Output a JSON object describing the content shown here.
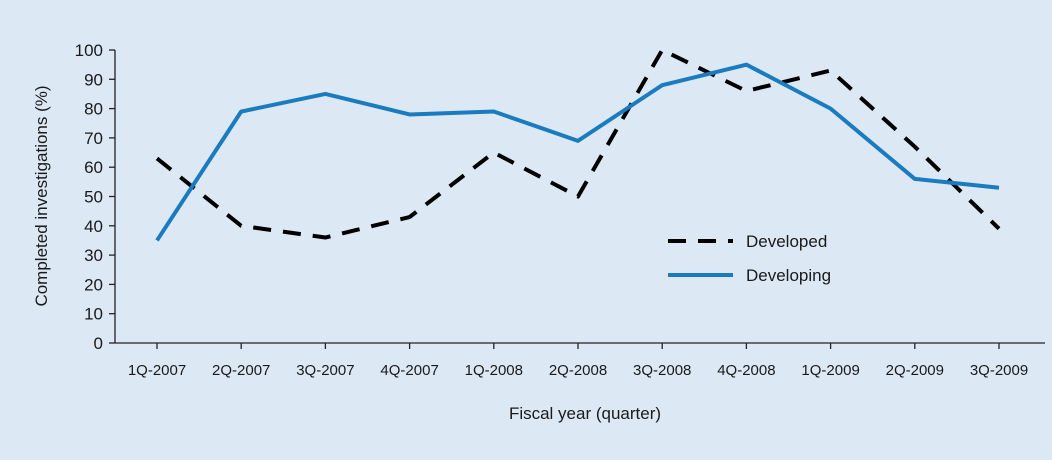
{
  "chart_data": {
    "type": "line",
    "title": "",
    "xlabel": "Fiscal year (quarter)",
    "ylabel": "Completed investigations (%)",
    "ylim": [
      0,
      100
    ],
    "yticks": [
      0,
      10,
      20,
      30,
      40,
      50,
      60,
      70,
      80,
      90,
      100
    ],
    "grid": false,
    "legend_position": "center-right",
    "categories": [
      "1Q-2007",
      "2Q-2007",
      "3Q-2007",
      "4Q-2007",
      "1Q-2008",
      "2Q-2008",
      "3Q-2008",
      "4Q-2008",
      "1Q-2009",
      "2Q-2009",
      "3Q-2009"
    ],
    "series": [
      {
        "name": "Developed",
        "style": "dashed",
        "color": "#000000",
        "values": [
          63,
          40,
          36,
          43,
          65,
          50,
          100,
          86,
          93,
          67,
          39
        ]
      },
      {
        "name": "Developing",
        "style": "solid",
        "color": "#1a7bbf",
        "values": [
          35,
          79,
          85,
          78,
          79,
          69,
          88,
          95,
          80,
          56,
          53
        ]
      }
    ]
  }
}
